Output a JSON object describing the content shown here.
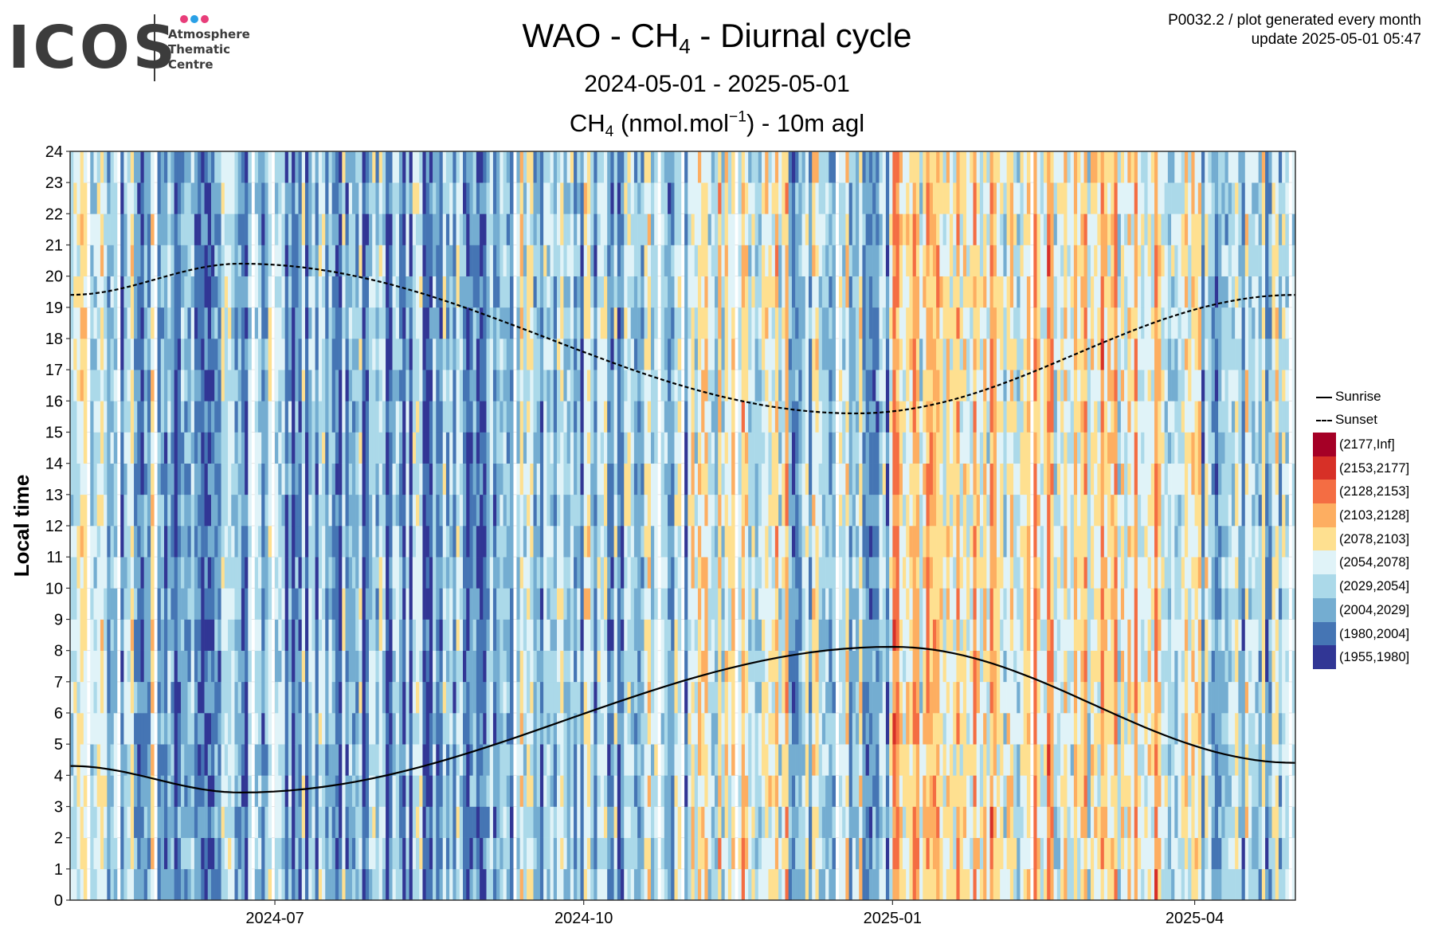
{
  "logo": {
    "wordmark": "ICOS",
    "line1": "Atmosphere",
    "line2": "Thematic",
    "line3": "Centre",
    "dot_colors": [
      "#e83e7a",
      "#2aa0e6",
      "#e83e7a"
    ]
  },
  "meta": {
    "line1": "P0032.2 / plot generated every month",
    "line2": "update  2025-05-01 05:47"
  },
  "header": {
    "title_pre": "WAO - CH",
    "title_sub": "4",
    "title_post": " - Diurnal cycle",
    "date_range": "2024-05-01 - 2025-05-01",
    "unit_pre": "CH",
    "unit_sub": "4",
    "unit_mid": " (nmol.mol",
    "unit_sup": "−1",
    "unit_post": ") - 10m agl"
  },
  "chart_data": {
    "type": "heatmap",
    "ylabel": "Local time",
    "x_range": [
      "2024-05-01",
      "2025-05-01"
    ],
    "x_ticks": [
      "2024-07",
      "2024-10",
      "2025-01",
      "2025-04"
    ],
    "y_range": [
      0,
      24
    ],
    "y_ticks": [
      0,
      1,
      2,
      3,
      4,
      5,
      6,
      7,
      8,
      9,
      10,
      11,
      12,
      13,
      14,
      15,
      16,
      17,
      18,
      19,
      20,
      21,
      22,
      23,
      24
    ],
    "grid": true,
    "legend_position": "right",
    "lines": [
      {
        "name": "Sunrise",
        "style": "solid",
        "color": "#000000",
        "x": [
          "2024-05-01",
          "2024-06-21",
          "2025-01-01",
          "2025-05-01"
        ],
        "y": [
          4.3,
          3.45,
          8.12,
          4.4
        ]
      },
      {
        "name": "Sunset",
        "style": "dashed",
        "color": "#000000",
        "x": [
          "2024-05-01",
          "2024-06-21",
          "2024-12-21",
          "2025-05-01"
        ],
        "y": [
          19.4,
          20.4,
          15.6,
          19.4
        ]
      }
    ],
    "color_bins": [
      {
        "label": "(2177,Inf]",
        "color": "#a50026"
      },
      {
        "label": "(2153,2177]",
        "color": "#d73027"
      },
      {
        "label": "(2128,2153]",
        "color": "#f46d43"
      },
      {
        "label": "(2103,2128]",
        "color": "#fdae61"
      },
      {
        "label": "(2078,2103]",
        "color": "#fee090"
      },
      {
        "label": "(2054,2078]",
        "color": "#e0f3f8"
      },
      {
        "label": "(2029,2054]",
        "color": "#abd9e9"
      },
      {
        "label": "(2004,2029]",
        "color": "#74add1"
      },
      {
        "label": "(1980,2004]",
        "color": "#4575b4"
      },
      {
        "label": "(1955,1980]",
        "color": "#313695"
      }
    ],
    "cell_pattern": {
      "days": 365,
      "hours": 24,
      "profile": [
        {
          "from": "2024-05-01",
          "to": "2024-05-31",
          "mean_bin": 5.9
        },
        {
          "from": "2024-06-01",
          "to": "2024-08-31",
          "mean_bin": 7.1
        },
        {
          "from": "2024-09-01",
          "to": "2024-10-31",
          "mean_bin": 6.2
        },
        {
          "from": "2024-11-01",
          "to": "2024-11-30",
          "mean_bin": 4.6
        },
        {
          "from": "2024-12-01",
          "to": "2024-12-31",
          "mean_bin": 6.0
        },
        {
          "from": "2025-01-01",
          "to": "2025-03-31",
          "mean_bin": 4.3
        },
        {
          "from": "2025-04-01",
          "to": "2025-04-30",
          "mean_bin": 5.9
        }
      ]
    }
  }
}
